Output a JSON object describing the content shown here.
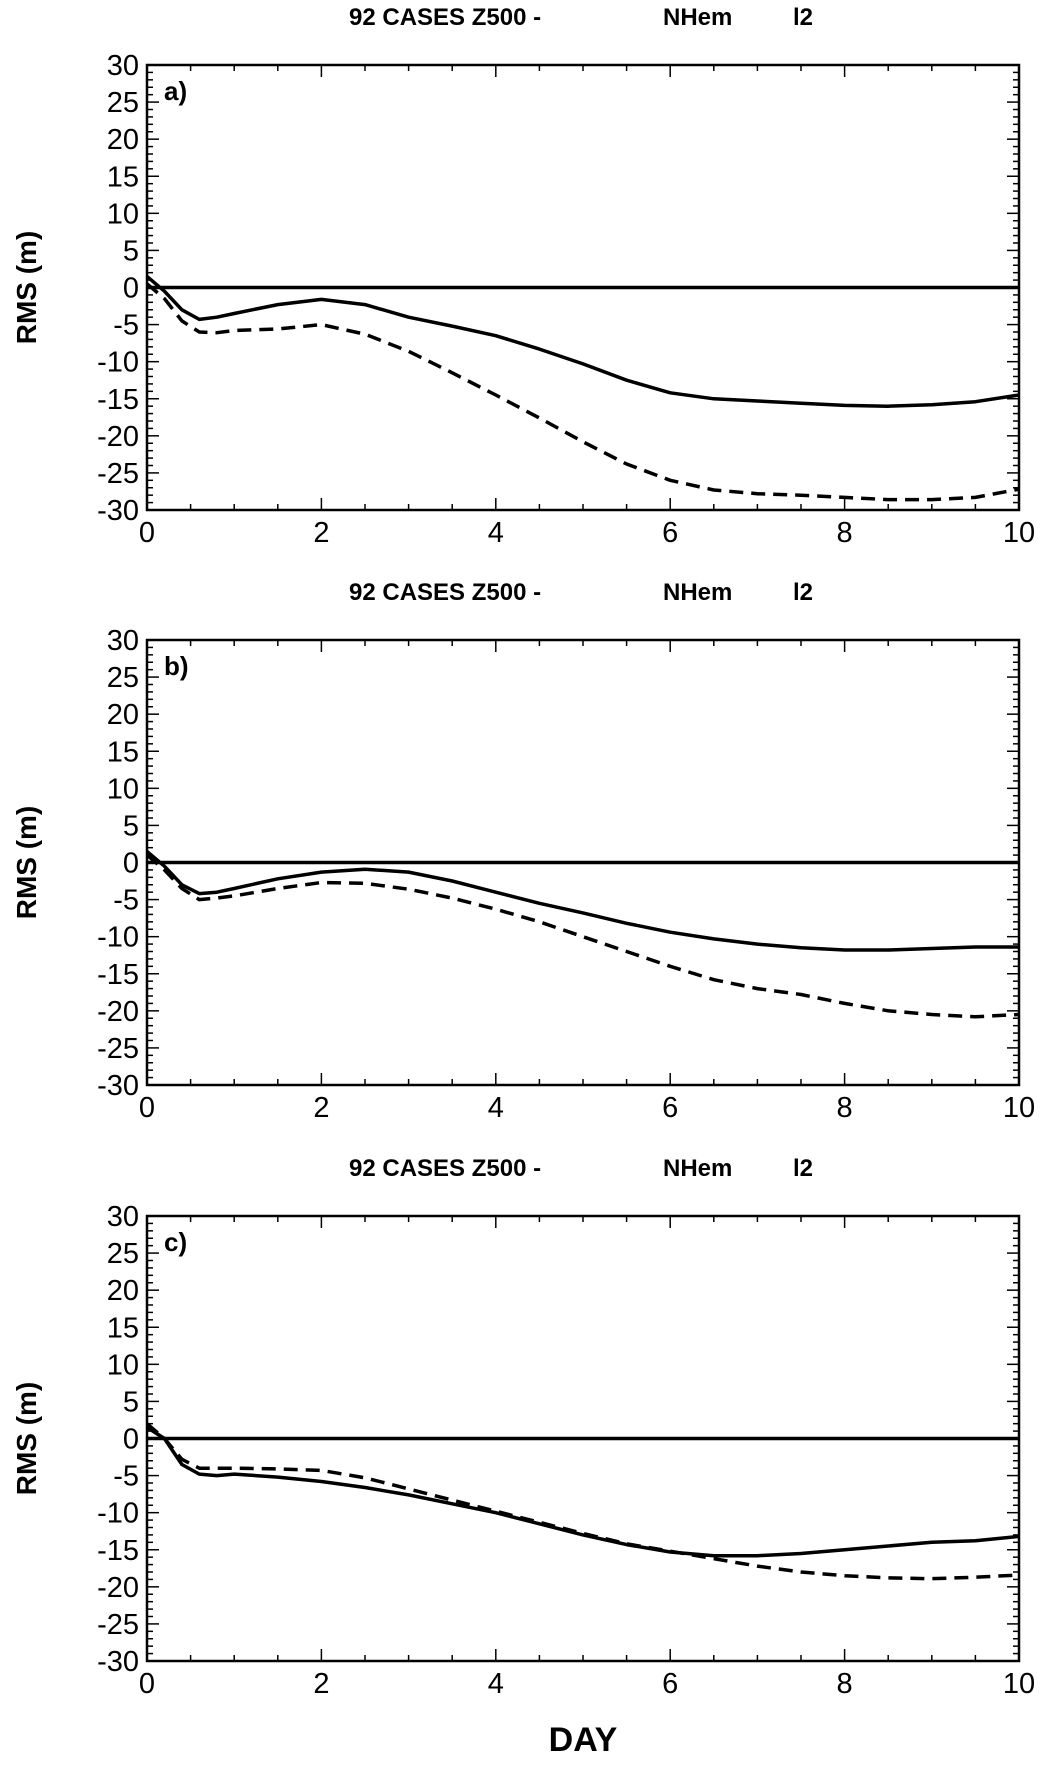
{
  "chart_data": [
    {
      "type": "line",
      "title": {
        "part1": "92 CASES Z500 -",
        "part2": "NHem",
        "part3": "l2"
      },
      "panel_label": "a)",
      "ylabel": "RMS (m)",
      "xlabel": "",
      "xlim": [
        0,
        10
      ],
      "ylim": [
        -30,
        30
      ],
      "xticks": [
        "0",
        "2",
        "4",
        "6",
        "8",
        "10"
      ],
      "yticks": [
        "30",
        "25",
        "20",
        "15",
        "10",
        "5",
        "0",
        "-5",
        "-10",
        "-15",
        "-20",
        "-25",
        "-30"
      ],
      "grid": false,
      "series": [
        {
          "style": "solid",
          "color": "#000000",
          "x": [
            0,
            10
          ],
          "y": [
            0,
            0
          ]
        },
        {
          "style": "solid",
          "color": "#000000",
          "x": [
            0,
            0.2,
            0.4,
            0.6,
            0.8,
            1.0,
            1.5,
            2.0,
            2.5,
            3.0,
            3.5,
            4.0,
            4.5,
            5.0,
            5.5,
            6.0,
            6.5,
            7.0,
            7.5,
            8.0,
            8.5,
            9.0,
            9.5,
            10.0
          ],
          "y": [
            1.5,
            -0.5,
            -3,
            -4.3,
            -4.0,
            -3.5,
            -2.3,
            -1.6,
            -2.3,
            -4.0,
            -5.2,
            -6.5,
            -8.3,
            -10.3,
            -12.5,
            -14.2,
            -15.0,
            -15.3,
            -15.6,
            -15.9,
            -16.0,
            -15.8,
            -15.4,
            -14.5
          ]
        },
        {
          "style": "dashed",
          "color": "#000000",
          "x": [
            0,
            0.2,
            0.4,
            0.6,
            0.8,
            1.0,
            1.5,
            2.0,
            2.5,
            3.0,
            3.5,
            4.0,
            4.5,
            5.0,
            5.5,
            6.0,
            6.5,
            7.0,
            7.5,
            8.0,
            8.5,
            9.0,
            9.5,
            10.0
          ],
          "y": [
            0.5,
            -1.5,
            -4.5,
            -6.0,
            -6.1,
            -5.8,
            -5.6,
            -5.0,
            -6.3,
            -8.6,
            -11.5,
            -14.5,
            -17.6,
            -20.8,
            -23.8,
            -26.0,
            -27.3,
            -27.8,
            -28.0,
            -28.3,
            -28.6,
            -28.6,
            -28.3,
            -27.2
          ]
        }
      ]
    },
    {
      "type": "line",
      "title": {
        "part1": "92 CASES Z500 -",
        "part2": "NHem",
        "part3": "l2"
      },
      "panel_label": "b)",
      "ylabel": "RMS (m)",
      "xlabel": "",
      "xlim": [
        0,
        10
      ],
      "ylim": [
        -30,
        30
      ],
      "xticks": [
        "0",
        "2",
        "4",
        "6",
        "8",
        "10"
      ],
      "yticks": [
        "30",
        "25",
        "20",
        "15",
        "10",
        "5",
        "0",
        "-5",
        "-10",
        "-15",
        "-20",
        "-25",
        "-30"
      ],
      "grid": false,
      "series": [
        {
          "style": "solid",
          "color": "#000000",
          "x": [
            0,
            10
          ],
          "y": [
            0,
            0
          ]
        },
        {
          "style": "solid",
          "color": "#000000",
          "x": [
            0,
            0.2,
            0.4,
            0.6,
            0.8,
            1.0,
            1.5,
            2.0,
            2.5,
            3.0,
            3.5,
            4.0,
            4.5,
            5.0,
            5.5,
            6.0,
            6.5,
            7.0,
            7.5,
            8.0,
            8.5,
            9.0,
            9.5,
            10.0
          ],
          "y": [
            1.5,
            -0.5,
            -3,
            -4.2,
            -4.0,
            -3.5,
            -2.2,
            -1.3,
            -0.9,
            -1.3,
            -2.5,
            -4.0,
            -5.5,
            -6.8,
            -8.2,
            -9.4,
            -10.3,
            -11.0,
            -11.5,
            -11.8,
            -11.8,
            -11.6,
            -11.4,
            -11.4
          ]
        },
        {
          "style": "dashed",
          "color": "#000000",
          "x": [
            0,
            0.2,
            0.4,
            0.6,
            0.8,
            1.0,
            1.5,
            2.0,
            2.5,
            3.0,
            3.5,
            4.0,
            4.5,
            5.0,
            5.5,
            6.0,
            6.5,
            7.0,
            7.5,
            8.0,
            8.5,
            9.0,
            9.5,
            10.0
          ],
          "y": [
            1.0,
            -1.0,
            -3.5,
            -5.0,
            -4.8,
            -4.5,
            -3.5,
            -2.7,
            -2.8,
            -3.6,
            -4.8,
            -6.3,
            -8.0,
            -10.0,
            -12.0,
            -14.0,
            -15.8,
            -17.0,
            -17.8,
            -19.0,
            -20.0,
            -20.5,
            -20.8,
            -20.5
          ]
        }
      ]
    },
    {
      "type": "line",
      "title": {
        "part1": "92 CASES Z500 -",
        "part2": "NHem",
        "part3": "l2"
      },
      "panel_label": "c)",
      "ylabel": "RMS (m)",
      "xlabel": "DAY",
      "xlim": [
        0,
        10
      ],
      "ylim": [
        -30,
        30
      ],
      "xticks": [
        "0",
        "2",
        "4",
        "6",
        "8",
        "10"
      ],
      "yticks": [
        "30",
        "25",
        "20",
        "15",
        "10",
        "5",
        "0",
        "-5",
        "-10",
        "-15",
        "-20",
        "-25",
        "-30"
      ],
      "grid": false,
      "series": [
        {
          "style": "solid",
          "color": "#000000",
          "x": [
            0,
            10
          ],
          "y": [
            0,
            0
          ]
        },
        {
          "style": "solid",
          "color": "#000000",
          "x": [
            0,
            0.2,
            0.4,
            0.6,
            0.8,
            1.0,
            1.5,
            2.0,
            2.5,
            3.0,
            3.5,
            4.0,
            4.5,
            5.0,
            5.5,
            6.0,
            6.5,
            7.0,
            7.5,
            8.0,
            8.5,
            9.0,
            9.5,
            10.0
          ],
          "y": [
            1.5,
            0,
            -3.5,
            -4.8,
            -5.0,
            -4.8,
            -5.2,
            -5.8,
            -6.6,
            -7.6,
            -8.8,
            -10.0,
            -11.5,
            -13.0,
            -14.3,
            -15.3,
            -15.8,
            -15.8,
            -15.5,
            -15.0,
            -14.5,
            -14.0,
            -13.8,
            -13.2
          ]
        },
        {
          "style": "dashed",
          "color": "#000000",
          "x": [
            0,
            0.2,
            0.4,
            0.6,
            0.8,
            1.0,
            1.5,
            2.0,
            2.5,
            3.0,
            3.5,
            4.0,
            4.5,
            5.0,
            5.5,
            6.0,
            6.5,
            7.0,
            7.5,
            8.0,
            8.5,
            9.0,
            9.5,
            10.0
          ],
          "y": [
            2.0,
            0,
            -2.8,
            -4.0,
            -4.0,
            -4.0,
            -4.1,
            -4.3,
            -5.3,
            -6.8,
            -8.3,
            -9.8,
            -11.3,
            -12.8,
            -14.2,
            -15.2,
            -16.2,
            -17.2,
            -18.0,
            -18.5,
            -18.8,
            -18.9,
            -18.7,
            -18.4
          ]
        }
      ]
    }
  ]
}
